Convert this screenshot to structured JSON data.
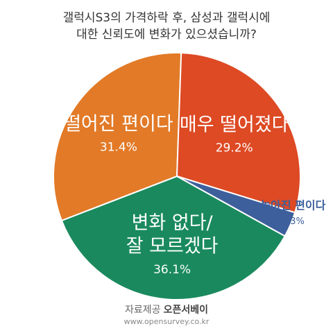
{
  "chart_data": {
    "type": "pie",
    "title": [
      "갤럭시S3의 가격하락 후, 삼성과 갤럭시에",
      "대한 신뢰도에 변화가 있으셨습니까?"
    ],
    "slices": [
      {
        "label": [
          "변화 없다/",
          "잘 모르겠다"
        ],
        "value": 36.1,
        "value_label": "36.1%",
        "color": "#1a8a5e"
      },
      {
        "label": [
          "떨어진 편이다"
        ],
        "value": 31.4,
        "value_label": "31.4%",
        "color": "#e27a27"
      },
      {
        "label": [
          "매우 떨어졌다"
        ],
        "value": 29.2,
        "value_label": "29.2%",
        "color": "#dd4a24"
      },
      {
        "label": [
          "높아진 편이다"
        ],
        "value": 3.3,
        "value_label": "3.3%",
        "color": "#3d5f9c"
      }
    ]
  },
  "footer": {
    "source_prefix": "자료제공",
    "source_name": "오픈서베이",
    "url": "www.opensurvey.co.kr"
  }
}
